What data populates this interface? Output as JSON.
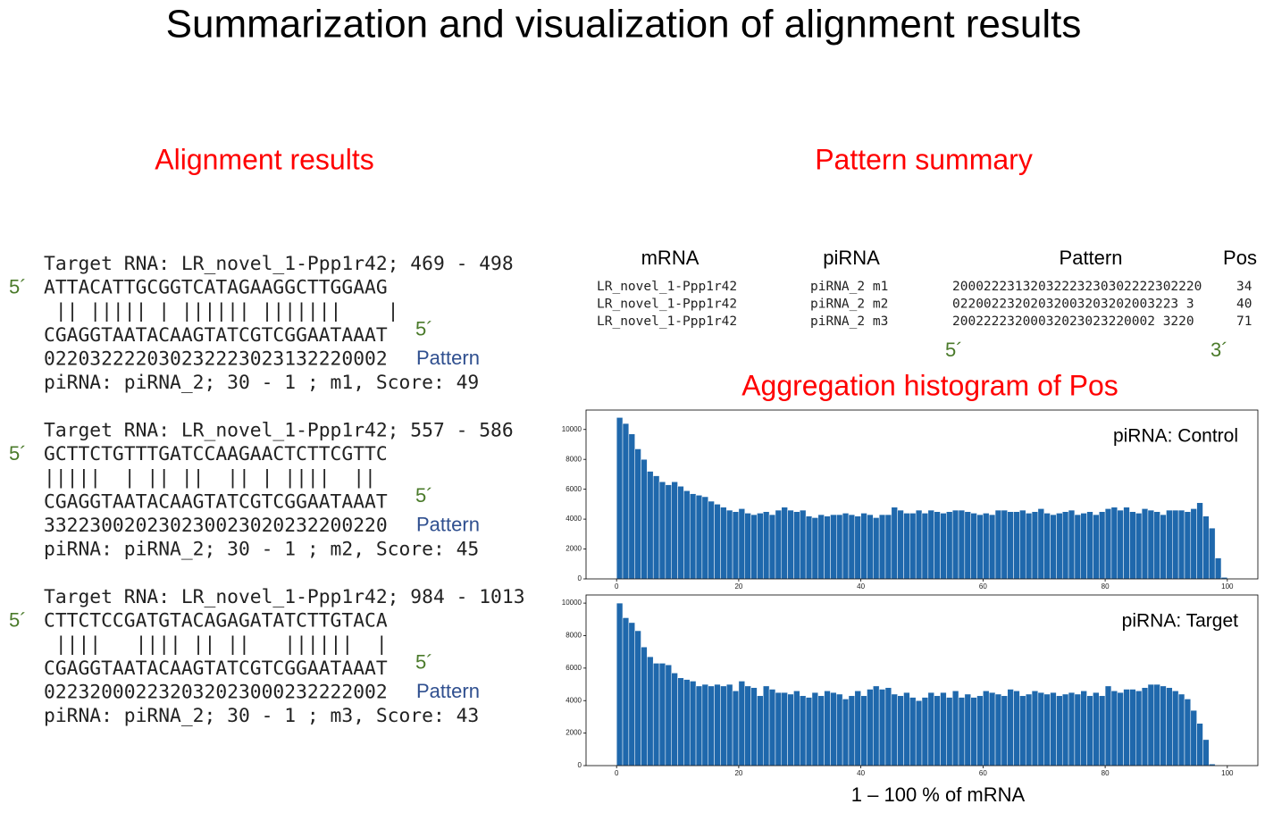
{
  "title": "Summarization and visualization of alignment results",
  "alignment_heading": "Alignment results",
  "summary_heading": "Pattern summary",
  "histogram_heading": "Aggregation histogram of Pos",
  "alignments": [
    {
      "target": "Target RNA: LR_novel_1-Ppp1r42; 469 - 498",
      "five_prime": "5´",
      "sequence": "ATTACATTGCGGTCATAGAAGGCTTGGAAG",
      "bars": " || ||||| | |||||| |||||||    |",
      "pirna_sequence": "CGAGGTAATACAAGTATCGTCGGAATAAAT",
      "pirna_five_prime": "5´",
      "pattern": "022032222030232223023132220002",
      "pattern_label": "Pattern",
      "info": "piRNA: piRNA_2; 30 - 1 ; m1, Score: 49"
    },
    {
      "target": "Target RNA: LR_novel_1-Ppp1r42; 557 - 586",
      "five_prime": "5´",
      "sequence": "GCTTCTGTTTGATCCAAGAACTCTTCGTTC",
      "bars": "|||||  | || ||  || | ||||  ||",
      "pirna_sequence": "CGAGGTAATACAAGTATCGTCGGAATAAAT",
      "pirna_five_prime": "5´",
      "pattern": "332230020230230023020232200220",
      "pattern_label": "Pattern",
      "info": "piRNA: piRNA_2; 30 - 1 ; m2, Score: 45"
    },
    {
      "target": "Target RNA: LR_novel_1-Ppp1r42; 984 - 1013",
      "five_prime": "5´",
      "sequence": "CTTCTCCGATGTACAGAGATATCTTGTACA",
      "bars": " ||||   |||| || ||   ||||||  |",
      "pirna_sequence": "CGAGGTAATACAAGTATCGTCGGAATAAAT",
      "pirna_five_prime": "5´",
      "pattern": "022320002232032023000232222002",
      "pattern_label": "Pattern",
      "info": "piRNA: piRNA_2; 30 - 1 ; m3, Score: 43"
    }
  ],
  "summary_table": {
    "headers": [
      "mRNA",
      "piRNA",
      "Pattern",
      "Pos"
    ],
    "rows": [
      [
        "LR_novel_1-Ppp1r42",
        "piRNA_2 m1",
        "20002223132032223230302222302220",
        "34"
      ],
      [
        "LR_novel_1-Ppp1r42",
        "piRNA_2 m2",
        "02200223202032003203202003223 3",
        "40"
      ],
      [
        "LR_novel_1-Ppp1r42",
        "piRNA_2 m3",
        "20022223200032023023220002 3220",
        "71"
      ]
    ],
    "five_prime": "5´",
    "three_prime": "3´"
  },
  "histogram_xlabel": "1 – 100 % of mRNA",
  "chart_data": [
    {
      "type": "histogram",
      "annotation": "piRNA: Control",
      "color": "#1f68ac",
      "bins": [
        0,
        1,
        2,
        3,
        4,
        5,
        6,
        7,
        8,
        9,
        10,
        11,
        12,
        13,
        14,
        15,
        16,
        17,
        18,
        19,
        20,
        21,
        22,
        23,
        24,
        25,
        26,
        27,
        28,
        29,
        30,
        31,
        32,
        33,
        34,
        35,
        36,
        37,
        38,
        39,
        40,
        41,
        42,
        43,
        44,
        45,
        46,
        47,
        48,
        49,
        50,
        51,
        52,
        53,
        54,
        55,
        56,
        57,
        58,
        59,
        60,
        61,
        62,
        63,
        64,
        65,
        66,
        67,
        68,
        69,
        70,
        71,
        72,
        73,
        74,
        75,
        76,
        77,
        78,
        79,
        80,
        81,
        82,
        83,
        84,
        85,
        86,
        87,
        88,
        89,
        90,
        91,
        92,
        93,
        94,
        95,
        96,
        97,
        98,
        99,
        100
      ],
      "values": [
        10800,
        10400,
        9700,
        8700,
        8000,
        7200,
        6900,
        6500,
        6300,
        6500,
        6200,
        5900,
        5700,
        5600,
        5500,
        5200,
        5000,
        4800,
        4600,
        4500,
        4700,
        4400,
        4300,
        4400,
        4500,
        4300,
        4600,
        4800,
        4600,
        4500,
        4600,
        4200,
        4100,
        4300,
        4200,
        4300,
        4300,
        4400,
        4300,
        4200,
        4400,
        4300,
        4100,
        4300,
        4300,
        4800,
        4600,
        4400,
        4400,
        4600,
        4400,
        4600,
        4500,
        4400,
        4500,
        4600,
        4600,
        4500,
        4400,
        4300,
        4400,
        4300,
        4600,
        4600,
        4500,
        4500,
        4600,
        4400,
        4500,
        4700,
        4400,
        4300,
        4400,
        4500,
        4600,
        4300,
        4400,
        4500,
        4300,
        4500,
        4700,
        4800,
        4600,
        4800,
        4500,
        4400,
        4700,
        4600,
        4500,
        4300,
        4600,
        4600,
        4600,
        4500,
        4700,
        5100,
        4200,
        3400,
        1400,
        100
      ],
      "xlim": [
        -5,
        105
      ],
      "xticks": [
        0,
        20,
        40,
        60,
        80,
        100
      ],
      "ylim": [
        0,
        11300
      ],
      "yticks": [
        0,
        2000,
        4000,
        6000,
        8000,
        10000
      ]
    },
    {
      "type": "histogram",
      "annotation": "piRNA: Target",
      "color": "#1f68ac",
      "bins": [
        0,
        1,
        2,
        3,
        4,
        5,
        6,
        7,
        8,
        9,
        10,
        11,
        12,
        13,
        14,
        15,
        16,
        17,
        18,
        19,
        20,
        21,
        22,
        23,
        24,
        25,
        26,
        27,
        28,
        29,
        30,
        31,
        32,
        33,
        34,
        35,
        36,
        37,
        38,
        39,
        40,
        41,
        42,
        43,
        44,
        45,
        46,
        47,
        48,
        49,
        50,
        51,
        52,
        53,
        54,
        55,
        56,
        57,
        58,
        59,
        60,
        61,
        62,
        63,
        64,
        65,
        66,
        67,
        68,
        69,
        70,
        71,
        72,
        73,
        74,
        75,
        76,
        77,
        78,
        79,
        80,
        81,
        82,
        83,
        84,
        85,
        86,
        87,
        88,
        89,
        90,
        91,
        92,
        93,
        94,
        95,
        96,
        97,
        98
      ],
      "values": [
        10000,
        9100,
        8800,
        8300,
        7300,
        6700,
        6300,
        6300,
        6200,
        5700,
        5400,
        5300,
        5200,
        4900,
        5000,
        4900,
        5000,
        4900,
        5000,
        4600,
        5200,
        4900,
        4800,
        4300,
        4900,
        4700,
        4500,
        4500,
        4400,
        4600,
        4300,
        4200,
        4500,
        4300,
        4600,
        4500,
        4400,
        4100,
        4300,
        4600,
        4300,
        4700,
        4900,
        4700,
        4800,
        4400,
        4300,
        4500,
        4200,
        4000,
        4200,
        4500,
        4300,
        4500,
        4200,
        4600,
        4200,
        4400,
        4200,
        4300,
        4600,
        4500,
        4400,
        4300,
        4700,
        4600,
        4300,
        4400,
        4600,
        4500,
        4400,
        4500,
        4300,
        4400,
        4500,
        4400,
        4600,
        4300,
        4500,
        4300,
        4900,
        4600,
        4500,
        4700,
        4700,
        4600,
        4800,
        5000,
        5000,
        4900,
        4800,
        4600,
        4400,
        4100,
        3400,
        2600,
        1600,
        100
      ],
      "xlim": [
        -5,
        105
      ],
      "xticks": [
        0,
        20,
        40,
        60,
        80,
        100
      ],
      "ylim": [
        0,
        10500
      ],
      "yticks": [
        0,
        2000,
        4000,
        6000,
        8000,
        10000
      ]
    }
  ]
}
